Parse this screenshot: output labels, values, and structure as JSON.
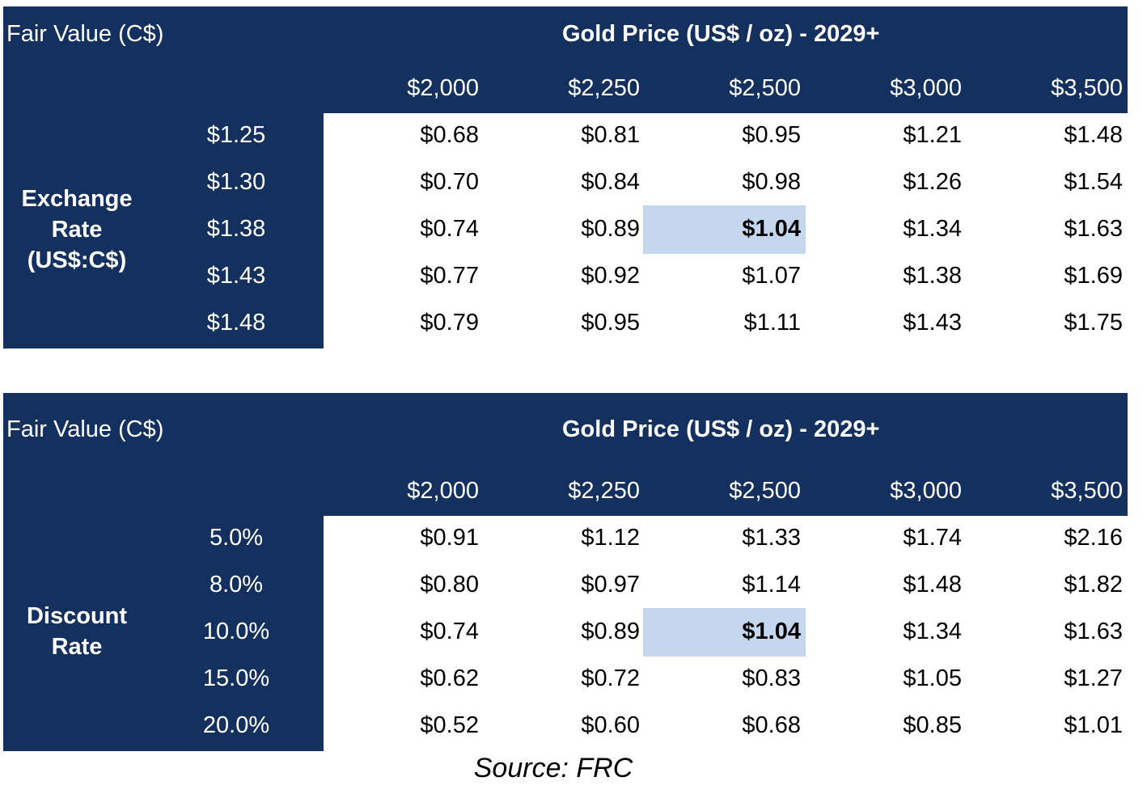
{
  "chart_data": [
    {
      "type": "table",
      "corner_label": "Fair Value (C$)",
      "column_header": "Gold Price (US$ / oz) - 2029+",
      "row_header": "Exchange Rate (US$:C$)",
      "row_header_lines": [
        "Exchange",
        "Rate",
        "(US$:C$)"
      ],
      "columns": [
        "$2,000",
        "$2,250",
        "$2,500",
        "$3,000",
        "$3,500"
      ],
      "rows": [
        "$1.25",
        "$1.30",
        "$1.38",
        "$1.43",
        "$1.48"
      ],
      "cells": [
        [
          "$0.68",
          "$0.81",
          "$0.95",
          "$1.21",
          "$1.48"
        ],
        [
          "$0.70",
          "$0.84",
          "$0.98",
          "$1.26",
          "$1.54"
        ],
        [
          "$0.74",
          "$0.89",
          "$1.04",
          "$1.34",
          "$1.63"
        ],
        [
          "$0.77",
          "$0.92",
          "$1.07",
          "$1.38",
          "$1.69"
        ],
        [
          "$0.79",
          "$0.95",
          "$1.11",
          "$1.43",
          "$1.75"
        ]
      ],
      "highlight": {
        "row": 2,
        "col": 2
      }
    },
    {
      "type": "table",
      "corner_label": "Fair Value (C$)",
      "column_header": "Gold Price (US$ / oz) - 2029+",
      "row_header": "Discount Rate",
      "row_header_lines": [
        "Discount",
        "Rate"
      ],
      "columns": [
        "$2,000",
        "$2,250",
        "$2,500",
        "$3,000",
        "$3,500"
      ],
      "rows": [
        "5.0%",
        "8.0%",
        "10.0%",
        "15.0%",
        "20.0%"
      ],
      "cells": [
        [
          "$0.91",
          "$1.12",
          "$1.33",
          "$1.74",
          "$2.16"
        ],
        [
          "$0.80",
          "$0.97",
          "$1.14",
          "$1.48",
          "$1.82"
        ],
        [
          "$0.74",
          "$0.89",
          "$1.04",
          "$1.34",
          "$1.63"
        ],
        [
          "$0.62",
          "$0.72",
          "$0.83",
          "$1.05",
          "$1.27"
        ],
        [
          "$0.52",
          "$0.60",
          "$0.68",
          "$0.85",
          "$1.01"
        ]
      ],
      "highlight": {
        "row": 2,
        "col": 2
      }
    }
  ],
  "colors": {
    "header_bg": "#13305e",
    "highlight_bg": "#c5d7ee",
    "header_text": "#ffffff"
  },
  "source": "Source: FRC"
}
